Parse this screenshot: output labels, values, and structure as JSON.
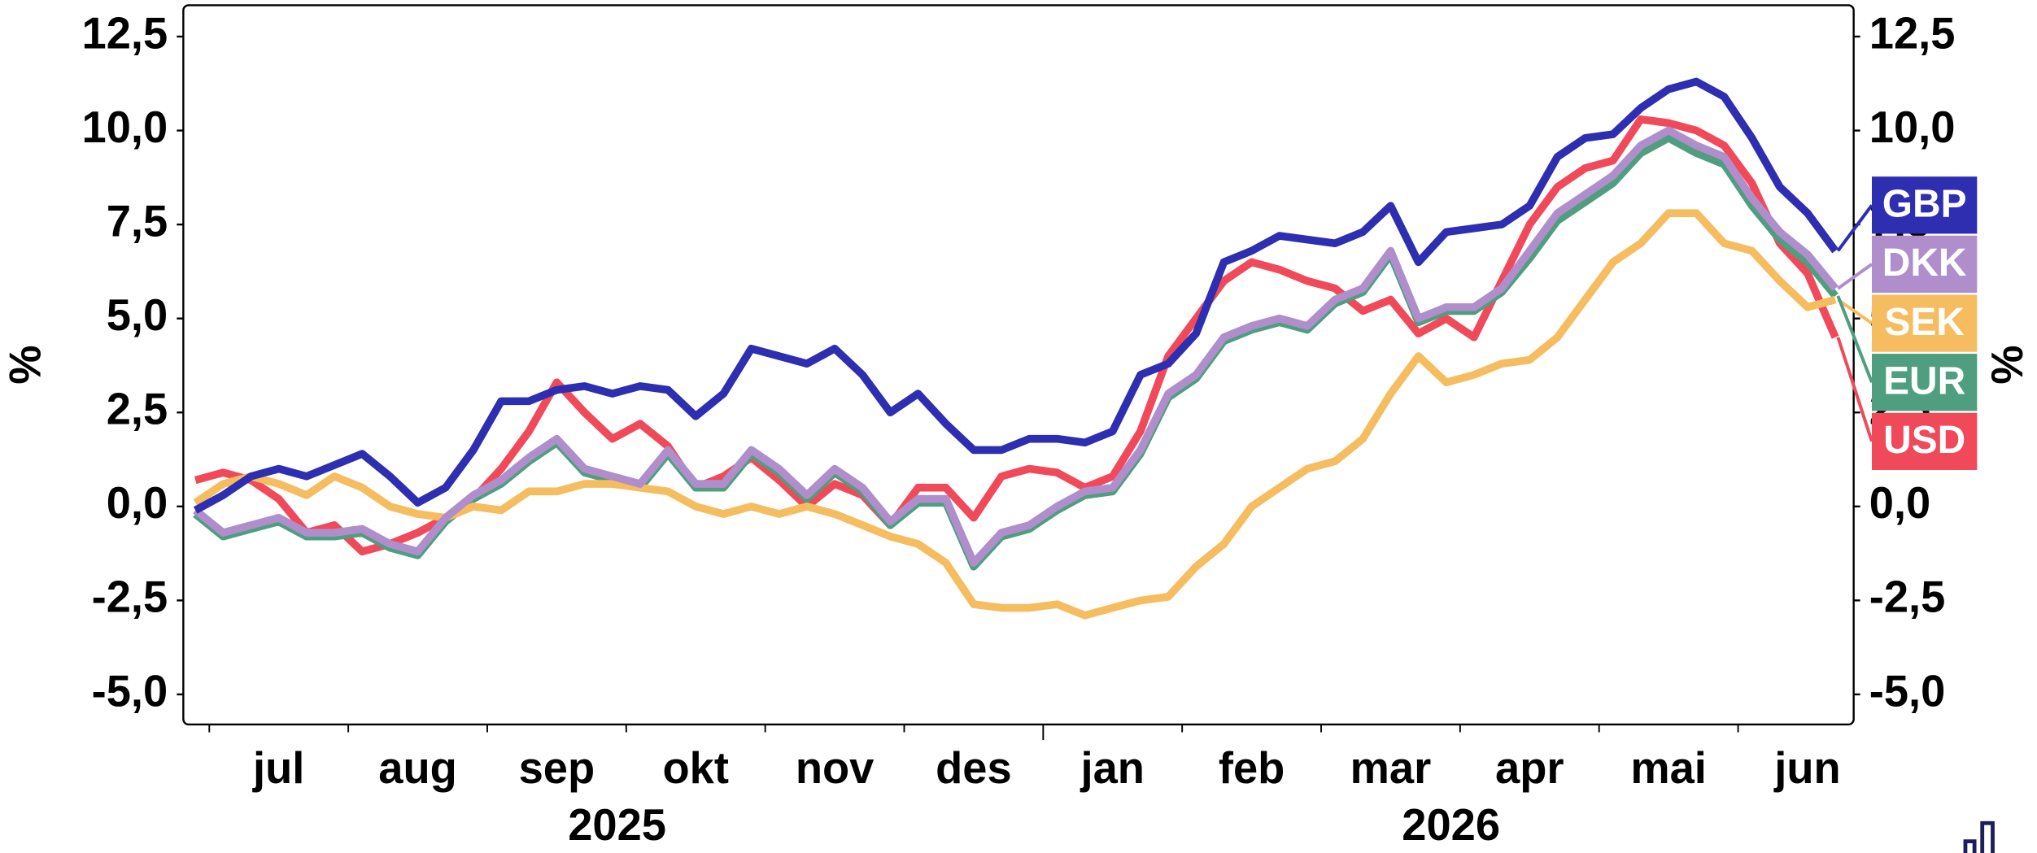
{
  "chart_data": {
    "type": "line",
    "y_axis_label": "%",
    "y2_axis_label": "%",
    "year_labels": [
      "2025",
      "2026"
    ],
    "categories": [
      null,
      null,
      null,
      "jul",
      null,
      null,
      null,
      null,
      "aug",
      null,
      null,
      null,
      null,
      "sep",
      null,
      null,
      null,
      null,
      "okt",
      null,
      null,
      null,
      null,
      "nov",
      null,
      null,
      null,
      null,
      "des",
      null,
      null,
      null,
      null,
      "jan",
      null,
      null,
      null,
      null,
      "feb",
      null,
      null,
      null,
      null,
      "mar",
      null,
      null,
      null,
      null,
      "apr",
      null,
      null,
      null,
      null,
      "mai",
      null,
      null,
      null,
      null,
      "jun",
      null
    ],
    "ylim": [
      -5.8,
      13.3
    ],
    "yticks": [
      {
        "value": -5,
        "label": "-5,0"
      },
      {
        "value": -2.5,
        "label": "-2,5"
      },
      {
        "value": 0,
        "label": "0,0"
      },
      {
        "value": 2.5,
        "label": "2,5"
      },
      {
        "value": 5,
        "label": "5,0"
      },
      {
        "value": 7.5,
        "label": "7,5"
      },
      {
        "value": 10,
        "label": "10,0"
      },
      {
        "value": 12.5,
        "label": "12,5"
      }
    ],
    "legend_position": "right",
    "series": [
      {
        "name": "GBP",
        "color": "#2e2eb0",
        "values": [
          -0.1,
          0.3,
          0.8,
          1.0,
          0.8,
          1.1,
          1.4,
          0.8,
          0.1,
          0.5,
          1.5,
          2.8,
          2.8,
          3.1,
          3.2,
          3.0,
          3.2,
          3.1,
          2.4,
          3.0,
          4.2,
          4.0,
          3.8,
          4.2,
          3.5,
          2.5,
          3.0,
          2.2,
          1.5,
          1.5,
          1.8,
          1.8,
          1.7,
          2.0,
          3.5,
          3.8,
          4.6,
          6.5,
          6.8,
          7.2,
          7.1,
          7.0,
          7.3,
          8.0,
          6.5,
          7.3,
          7.4,
          7.5,
          8.0,
          9.3,
          9.8,
          9.9,
          10.6,
          11.1,
          11.3,
          10.9,
          9.8,
          8.5,
          7.8,
          6.8
        ]
      },
      {
        "name": "DKK",
        "color": "#b08ecb",
        "values": [
          -0.1,
          -0.7,
          -0.5,
          -0.3,
          -0.7,
          -0.7,
          -0.6,
          -1.0,
          -1.2,
          -0.3,
          0.3,
          0.7,
          1.3,
          1.8,
          1.0,
          0.8,
          0.6,
          1.5,
          0.6,
          0.6,
          1.5,
          1.0,
          0.3,
          1.0,
          0.5,
          -0.4,
          0.2,
          0.2,
          -1.5,
          -0.7,
          -0.5,
          0.0,
          0.4,
          0.5,
          1.5,
          3.0,
          3.5,
          4.5,
          4.8,
          5.0,
          4.8,
          5.5,
          5.8,
          6.8,
          5.0,
          5.3,
          5.3,
          5.8,
          6.8,
          7.8,
          8.3,
          8.8,
          9.6,
          10.0,
          9.6,
          9.3,
          8.2,
          7.3,
          6.7,
          5.8
        ]
      },
      {
        "name": "SEK",
        "color": "#f6bd60",
        "values": [
          0.1,
          0.6,
          0.8,
          0.6,
          0.3,
          0.8,
          0.5,
          0.0,
          -0.2,
          -0.3,
          0.0,
          -0.1,
          0.4,
          0.4,
          0.6,
          0.6,
          0.5,
          0.4,
          0.0,
          -0.2,
          0.0,
          -0.2,
          0.0,
          -0.2,
          -0.5,
          -0.8,
          -1.0,
          -1.5,
          -2.6,
          -2.7,
          -2.7,
          -2.6,
          -2.9,
          -2.7,
          -2.5,
          -2.4,
          -1.6,
          -1.0,
          0.0,
          0.5,
          1.0,
          1.2,
          1.8,
          3.0,
          4.0,
          3.3,
          3.5,
          3.8,
          3.9,
          4.5,
          5.5,
          6.5,
          7.0,
          7.8,
          7.8,
          7.0,
          6.8,
          6.0,
          5.3,
          5.5
        ]
      },
      {
        "name": "EUR",
        "color": "#4f9e7f",
        "values": [
          -0.2,
          -0.8,
          -0.6,
          -0.4,
          -0.8,
          -0.8,
          -0.7,
          -1.1,
          -1.3,
          -0.4,
          0.2,
          0.6,
          1.2,
          1.7,
          0.9,
          0.7,
          0.5,
          1.4,
          0.5,
          0.5,
          1.4,
          0.9,
          0.2,
          0.9,
          0.4,
          -0.5,
          0.1,
          0.1,
          -1.6,
          -0.8,
          -0.6,
          -0.1,
          0.3,
          0.4,
          1.4,
          2.9,
          3.4,
          4.4,
          4.7,
          4.9,
          4.7,
          5.4,
          5.7,
          6.7,
          4.9,
          5.2,
          5.2,
          5.7,
          6.6,
          7.6,
          8.1,
          8.6,
          9.4,
          9.8,
          9.4,
          9.1,
          8.0,
          7.1,
          6.5,
          5.6
        ]
      },
      {
        "name": "USD",
        "color": "#f04a5a",
        "values": [
          0.7,
          0.9,
          0.7,
          0.2,
          -0.7,
          -0.5,
          -1.2,
          -1.0,
          -0.7,
          -0.3,
          0.2,
          1.0,
          2.0,
          3.3,
          2.5,
          1.8,
          2.2,
          1.6,
          0.5,
          0.8,
          1.3,
          0.7,
          0.0,
          0.6,
          0.3,
          -0.5,
          0.5,
          0.5,
          -0.3,
          0.8,
          1.0,
          0.9,
          0.5,
          0.8,
          2.0,
          4.0,
          5.0,
          6.0,
          6.5,
          6.3,
          6.0,
          5.8,
          5.2,
          5.5,
          4.6,
          5.0,
          4.5,
          6.0,
          7.5,
          8.5,
          9.0,
          9.2,
          10.3,
          10.2,
          10.0,
          9.6,
          8.6,
          7.0,
          6.2,
          4.5
        ]
      }
    ]
  }
}
